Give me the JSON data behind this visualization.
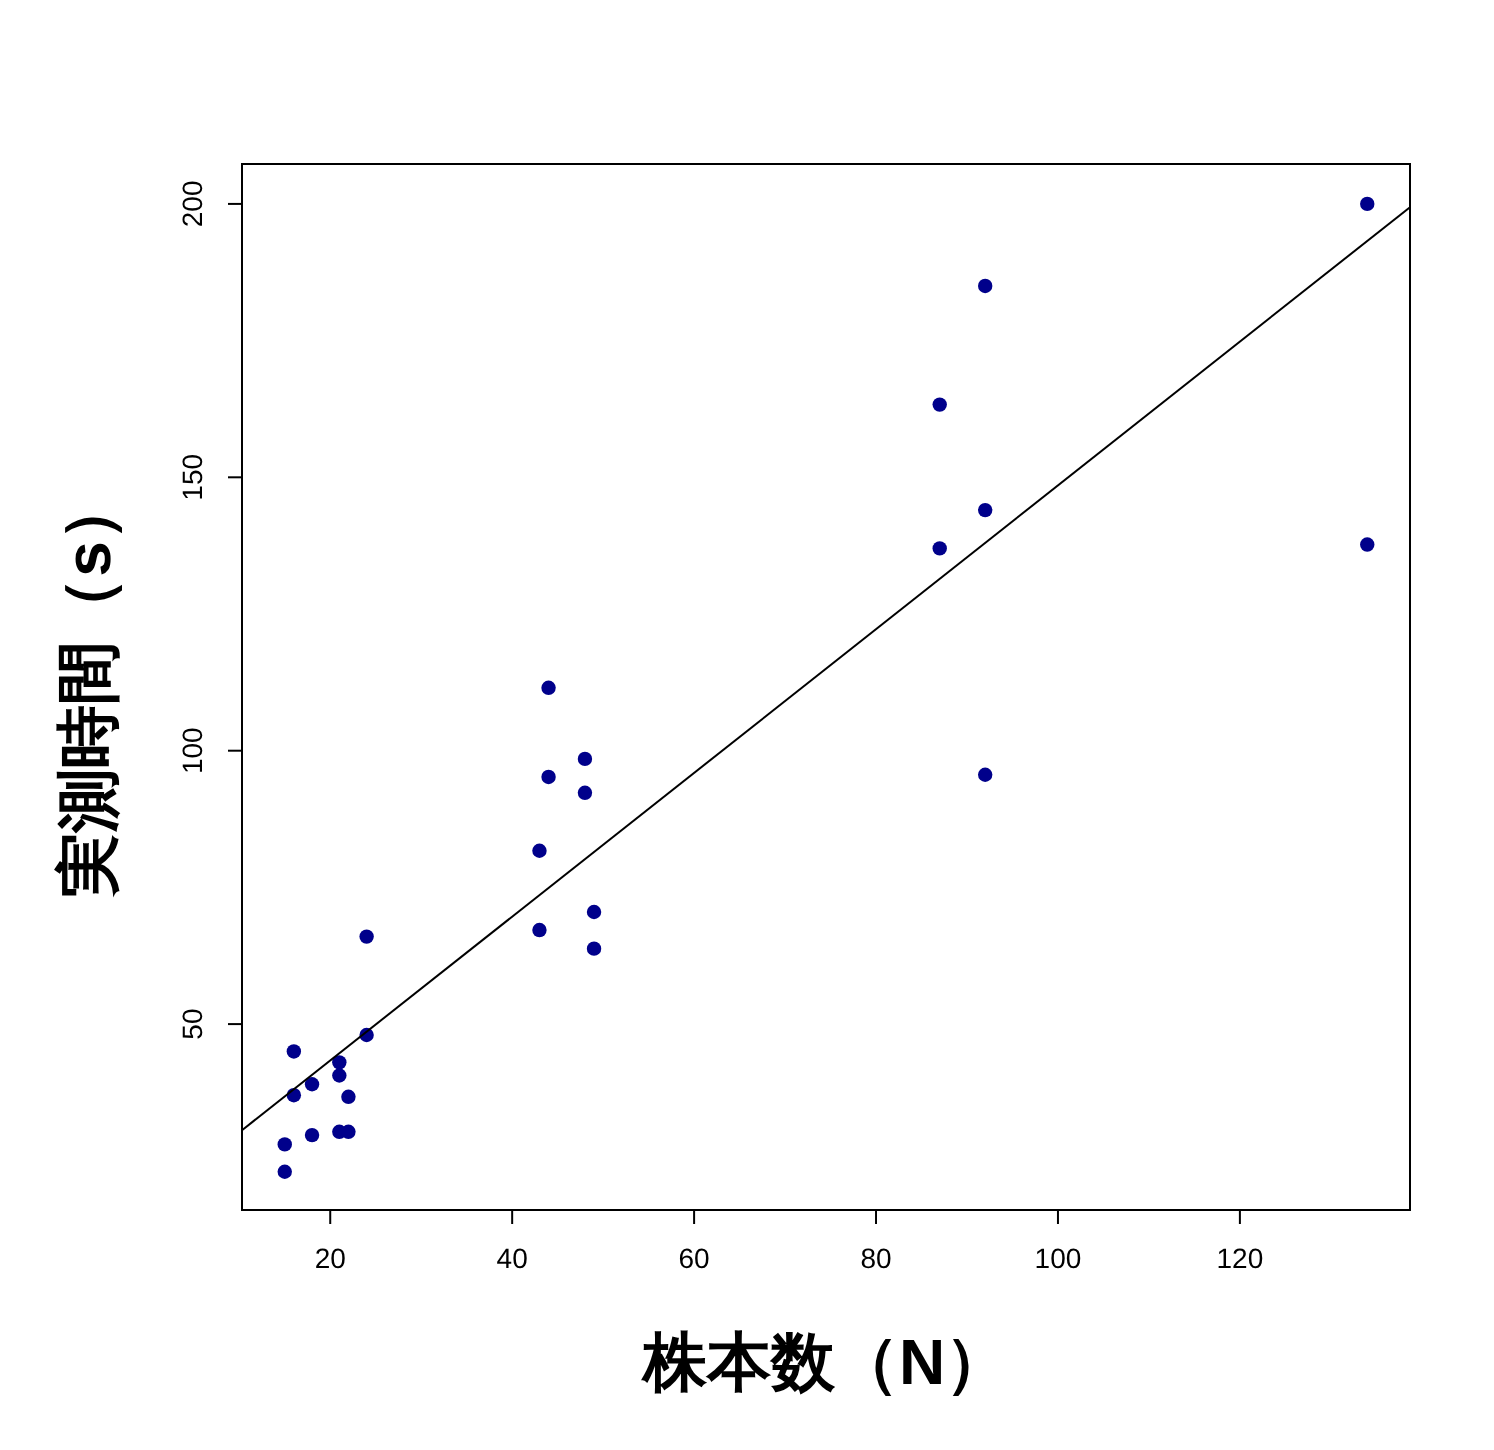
{
  "chart_data": {
    "type": "scatter",
    "xlabel": "株本数（N）",
    "ylabel": "実測時間（s）",
    "xlim": [
      10.3,
      138.7
    ],
    "ylim": [
      16,
      207.3
    ],
    "xticks": [
      20,
      40,
      60,
      80,
      100,
      120
    ],
    "yticks": [
      50,
      100,
      150,
      200
    ],
    "series": [
      {
        "marker": "circle",
        "color": "#00008b",
        "x": [
          16,
          24,
          21,
          21,
          18,
          16,
          22,
          15,
          18,
          21,
          22,
          15,
          24,
          44,
          48,
          44,
          48,
          43,
          49,
          43,
          49,
          92,
          87,
          92,
          87,
          134,
          92,
          134
        ],
        "values": [
          45,
          48,
          43,
          40.6,
          39,
          37,
          36.7,
          28,
          29.7,
          30.3,
          30.3,
          23,
          66,
          111.5,
          98.5,
          95.2,
          92.3,
          81.7,
          70.5,
          67.2,
          63.8,
          185,
          163.3,
          144,
          137,
          137.7,
          95.6,
          200
        ]
      },
      {
        "type": "line",
        "color": "#000000",
        "x": [
          10.3,
          138.7
        ],
        "values": [
          30.6,
          199.4
        ]
      }
    ]
  }
}
